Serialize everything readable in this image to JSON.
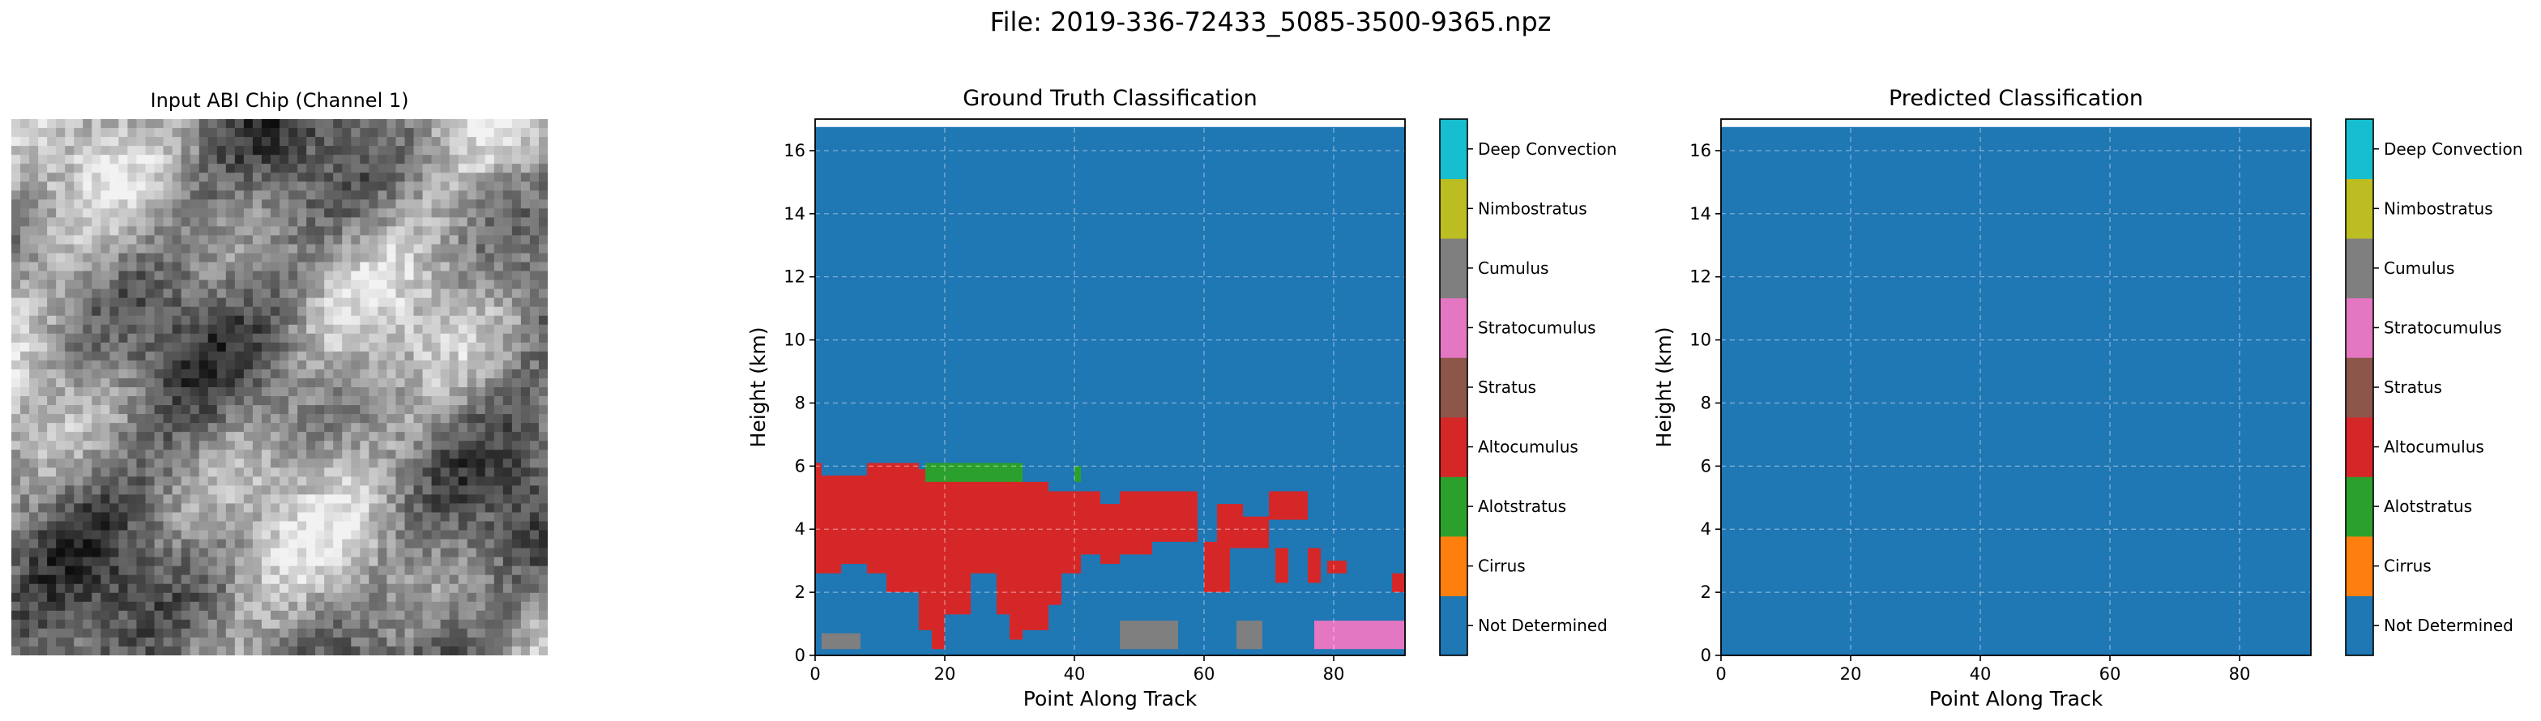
{
  "figure": {
    "suptitle": "File: 2019-336-72433_5085-3500-9365.npz"
  },
  "colors": {
    "Not Determined": "#1f77b4",
    "Cirrus": "#ff7f0e",
    "Alotstratus": "#2ca02c",
    "Altocumulus": "#d62728",
    "Stratus": "#8c564b",
    "Stratocumulus": "#e377c2",
    "Cumulus": "#7f7f7f",
    "Nimbostratus": "#bcbd22",
    "Deep Convection": "#17becf",
    "Deep Convection 2": "#9467bd"
  },
  "chart_data": [
    {
      "type": "image",
      "title": "Input ABI Chip (Channel 1)",
      "description_values": "grayscale satellite reflectance chip, axes hidden"
    },
    {
      "type": "heatmap",
      "title": "Ground Truth Classification",
      "xlabel": "Point Along Track",
      "ylabel": "Height (km)",
      "xlim": [
        0,
        91
      ],
      "ylim": [
        0,
        17
      ],
      "xticks": [
        0,
        20,
        40,
        60,
        80
      ],
      "yticks": [
        0,
        2,
        4,
        6,
        8,
        10,
        12,
        14,
        16
      ],
      "grid": true,
      "background_class": "Not Determined",
      "regions": [
        {
          "class": "Altocumulus",
          "x": [
            0,
            1
          ],
          "y": [
            2.6,
            6.1
          ]
        },
        {
          "class": "Altocumulus",
          "x": [
            1,
            4
          ],
          "y": [
            2.6,
            5.7
          ]
        },
        {
          "class": "Altocumulus",
          "x": [
            4,
            8
          ],
          "y": [
            2.9,
            5.7
          ]
        },
        {
          "class": "Altocumulus",
          "x": [
            8,
            11
          ],
          "y": [
            2.6,
            6.1
          ]
        },
        {
          "class": "Altocumulus",
          "x": [
            11,
            16
          ],
          "y": [
            2.0,
            6.1
          ]
        },
        {
          "class": "Altocumulus",
          "x": [
            16,
            18
          ],
          "y": [
            0.8,
            5.9
          ]
        },
        {
          "class": "Altocumulus",
          "x": [
            18,
            20
          ],
          "y": [
            0.2,
            5.7
          ]
        },
        {
          "class": "Altocumulus",
          "x": [
            20,
            24
          ],
          "y": [
            1.3,
            5.7
          ]
        },
        {
          "class": "Altocumulus",
          "x": [
            24,
            28
          ],
          "y": [
            2.6,
            5.7
          ]
        },
        {
          "class": "Altocumulus",
          "x": [
            28,
            30
          ],
          "y": [
            1.3,
            5.7
          ]
        },
        {
          "class": "Altocumulus",
          "x": [
            30,
            32
          ],
          "y": [
            0.5,
            5.7
          ]
        },
        {
          "class": "Altocumulus",
          "x": [
            32,
            36
          ],
          "y": [
            0.8,
            5.5
          ]
        },
        {
          "class": "Altocumulus",
          "x": [
            36,
            38
          ],
          "y": [
            1.6,
            5.2
          ]
        },
        {
          "class": "Altocumulus",
          "x": [
            38,
            41
          ],
          "y": [
            2.6,
            5.2
          ]
        },
        {
          "class": "Altocumulus",
          "x": [
            41,
            44
          ],
          "y": [
            3.2,
            5.2
          ]
        },
        {
          "class": "Altocumulus",
          "x": [
            44,
            47
          ],
          "y": [
            2.9,
            4.8
          ]
        },
        {
          "class": "Altocumulus",
          "x": [
            47,
            52
          ],
          "y": [
            3.2,
            5.2
          ]
        },
        {
          "class": "Altocumulus",
          "x": [
            52,
            59
          ],
          "y": [
            3.6,
            5.2
          ]
        },
        {
          "class": "Altocumulus",
          "x": [
            60,
            64
          ],
          "y": [
            2.0,
            3.6
          ]
        },
        {
          "class": "Altocumulus",
          "x": [
            62,
            66
          ],
          "y": [
            3.4,
            4.8
          ]
        },
        {
          "class": "Altocumulus",
          "x": [
            66,
            70
          ],
          "y": [
            3.4,
            4.4
          ]
        },
        {
          "class": "Altocumulus",
          "x": [
            70,
            76
          ],
          "y": [
            4.3,
            5.2
          ]
        },
        {
          "class": "Altocumulus",
          "x": [
            71,
            73
          ],
          "y": [
            2.3,
            3.4
          ]
        },
        {
          "class": "Altocumulus",
          "x": [
            76,
            78
          ],
          "y": [
            2.3,
            3.4
          ]
        },
        {
          "class": "Altocumulus",
          "x": [
            79,
            82
          ],
          "y": [
            2.6,
            3.0
          ]
        },
        {
          "class": "Altocumulus",
          "x": [
            89,
            91
          ],
          "y": [
            2.0,
            2.6
          ]
        },
        {
          "class": "Alotstratus",
          "x": [
            17,
            32
          ],
          "y": [
            5.5,
            6.1
          ]
        },
        {
          "class": "Alotstratus",
          "x": [
            40,
            41
          ],
          "y": [
            5.5,
            6.0
          ]
        },
        {
          "class": "Cumulus",
          "x": [
            1,
            7
          ],
          "y": [
            0.2,
            0.7
          ]
        },
        {
          "class": "Cumulus",
          "x": [
            47,
            56
          ],
          "y": [
            0.2,
            1.1
          ]
        },
        {
          "class": "Cumulus",
          "x": [
            65,
            69
          ],
          "y": [
            0.2,
            1.1
          ]
        },
        {
          "class": "Stratocumulus",
          "x": [
            77,
            91
          ],
          "y": [
            0.2,
            1.1
          ]
        }
      ],
      "colorbar": [
        "Not Determined",
        "Cirrus",
        "Alotstratus",
        "Altocumulus",
        "Stratus",
        "Stratocumulus",
        "Cumulus",
        "Nimbostratus",
        "Deep Convection"
      ]
    },
    {
      "type": "heatmap",
      "title": "Predicted Classification",
      "xlabel": "Point Along Track",
      "ylabel": "Height (km)",
      "xlim": [
        0,
        91
      ],
      "ylim": [
        0,
        17
      ],
      "xticks": [
        0,
        20,
        40,
        60,
        80
      ],
      "yticks": [
        0,
        2,
        4,
        6,
        8,
        10,
        12,
        14,
        16
      ],
      "grid": true,
      "background_class": "Not Determined",
      "regions": [],
      "colorbar": [
        "Not Determined",
        "Cirrus",
        "Alotstratus",
        "Altocumulus",
        "Stratus",
        "Stratocumulus",
        "Cumulus",
        "Nimbostratus",
        "Deep Convection"
      ]
    }
  ]
}
